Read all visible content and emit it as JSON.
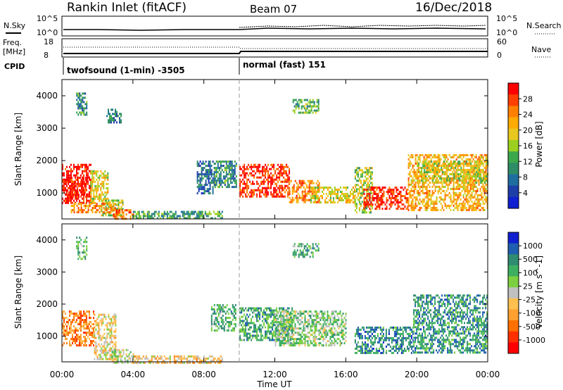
{
  "header": {
    "station": "Rankin Inlet (fitACF)",
    "beam": "Beam 07",
    "date": "16/Dec/2018"
  },
  "top_panels": {
    "nsky_label": "N.Sky",
    "nsky_ticks": [
      "10^5",
      "10^0"
    ],
    "nsearch_label": "N.Search",
    "nsearch_ticks": [
      "10^5",
      "10^0"
    ],
    "freq_label_1": "Freq.",
    "freq_label_2": "[MHz]",
    "freq_ticks": [
      "18",
      "8"
    ],
    "nave_label": "Nave",
    "nave_ticks": [
      "60",
      "0"
    ],
    "cpid_label": "CPID",
    "cpid_segments": [
      {
        "label": "twofsound (1-min) -3505",
        "start_hour": 0
      },
      {
        "label": "normal (fast) 151",
        "start_hour": 10
      }
    ]
  },
  "chart_data": [
    {
      "type": "heatmap",
      "name": "power",
      "ylabel": "Slant Range [km]",
      "yticks": [
        1000,
        2000,
        3000,
        4000
      ],
      "ylim": [
        200,
        4500
      ],
      "xlim": [
        0,
        24
      ],
      "colorbar_label": "Power [dB]",
      "colorbar_ticks": [
        "28",
        "24",
        "20",
        "16",
        "12",
        "8",
        "4"
      ],
      "colorbar_colors": [
        "#ff0000",
        "#ff4000",
        "#ff8000",
        "#ffaa00",
        "#e8c820",
        "#9bd020",
        "#3ca84c",
        "#2e8c66",
        "#1f6ea0",
        "#1e3ea8",
        "#1020d0"
      ],
      "regions": [
        {
          "x0": 0.0,
          "x1": 1.6,
          "y0": 700,
          "y1": 1900,
          "level": 1.0
        },
        {
          "x0": 0.2,
          "x1": 1.4,
          "y0": 900,
          "y1": 1500,
          "level": 1.0
        },
        {
          "x0": 1.6,
          "x1": 2.6,
          "y0": 700,
          "y1": 1700,
          "level": 0.6
        },
        {
          "x0": 2.2,
          "x1": 3.4,
          "y0": 300,
          "y1": 800,
          "level": 0.55
        },
        {
          "x0": 2.8,
          "x1": 4.0,
          "y0": 200,
          "y1": 500,
          "level": 0.85
        },
        {
          "x0": 0.5,
          "x1": 3.0,
          "y0": 400,
          "y1": 700,
          "level": 0.75
        },
        {
          "x0": 4.0,
          "x1": 9.0,
          "y0": 200,
          "y1": 450,
          "level": 0.35
        },
        {
          "x0": 7.6,
          "x1": 8.6,
          "y0": 1000,
          "y1": 2000,
          "level": 0.2
        },
        {
          "x0": 8.6,
          "x1": 9.8,
          "y0": 1200,
          "y1": 2000,
          "level": 0.3
        },
        {
          "x0": 10.0,
          "x1": 12.8,
          "y0": 900,
          "y1": 1900,
          "level": 0.95
        },
        {
          "x0": 12.8,
          "x1": 14.5,
          "y0": 700,
          "y1": 1400,
          "level": 0.8
        },
        {
          "x0": 14.0,
          "x1": 16.5,
          "y0": 700,
          "y1": 1200,
          "level": 0.6
        },
        {
          "x0": 16.5,
          "x1": 17.5,
          "y0": 400,
          "y1": 1800,
          "level": 0.5
        },
        {
          "x0": 17.0,
          "x1": 19.5,
          "y0": 500,
          "y1": 1200,
          "level": 0.97
        },
        {
          "x0": 19.5,
          "x1": 24.0,
          "y0": 500,
          "y1": 2200,
          "level": 0.7
        },
        {
          "x0": 20.0,
          "x1": 24.0,
          "y0": 1300,
          "y1": 2000,
          "level": 0.55
        },
        {
          "x0": 0.8,
          "x1": 1.4,
          "y0": 3400,
          "y1": 4100,
          "level": 0.3
        },
        {
          "x0": 2.5,
          "x1": 3.3,
          "y0": 3200,
          "y1": 3600,
          "level": 0.25
        },
        {
          "x0": 13.0,
          "x1": 14.5,
          "y0": 3500,
          "y1": 3900,
          "level": 0.4
        }
      ]
    },
    {
      "type": "heatmap",
      "name": "velocity",
      "ylabel": "Slant Range [km]",
      "xlabel": "Time UT",
      "yticks": [
        1000,
        2000,
        3000,
        4000
      ],
      "ylim": [
        200,
        4500
      ],
      "xlim": [
        0,
        24
      ],
      "xticks": [
        "00:00",
        "04:00",
        "08:00",
        "12:00",
        "16:00",
        "20:00",
        "00:00"
      ],
      "colorbar_label": "Velocity [m s^-1]",
      "colorbar_ticks": [
        "1000",
        "500",
        "100",
        "25",
        "-25",
        "-100",
        "-500",
        "-1000"
      ],
      "colorbar_colors": [
        "#1020d0",
        "#1f5eb0",
        "#2f8c70",
        "#3cb060",
        "#7cd040",
        "#c0c0c0",
        "#ffc050",
        "#ffa030",
        "#ff7000",
        "#ff3000",
        "#ff0000"
      ],
      "regions": [
        {
          "x0": 0.0,
          "x1": 1.8,
          "y0": 700,
          "y1": 1800,
          "level": 0.25
        },
        {
          "x0": 1.8,
          "x1": 3.0,
          "y0": 300,
          "y1": 1700,
          "level": 0.45
        },
        {
          "x0": 2.8,
          "x1": 4.0,
          "y0": 200,
          "y1": 600,
          "level": 0.55
        },
        {
          "x0": 4.0,
          "x1": 9.0,
          "y0": 200,
          "y1": 400,
          "level": 0.4
        },
        {
          "x0": 8.4,
          "x1": 9.8,
          "y0": 1200,
          "y1": 2000,
          "level": 0.7
        },
        {
          "x0": 10.0,
          "x1": 13.0,
          "y0": 900,
          "y1": 1900,
          "level": 0.72
        },
        {
          "x0": 12.0,
          "x1": 16.0,
          "y0": 700,
          "y1": 1800,
          "level": 0.6
        },
        {
          "x0": 16.5,
          "x1": 19.8,
          "y0": 500,
          "y1": 1300,
          "level": 0.8
        },
        {
          "x0": 19.8,
          "x1": 24.0,
          "y0": 500,
          "y1": 2300,
          "level": 0.78
        },
        {
          "x0": 0.8,
          "x1": 1.4,
          "y0": 3400,
          "y1": 4100,
          "level": 0.7
        },
        {
          "x0": 13.0,
          "x1": 14.5,
          "y0": 3500,
          "y1": 3900,
          "level": 0.7
        }
      ]
    }
  ]
}
